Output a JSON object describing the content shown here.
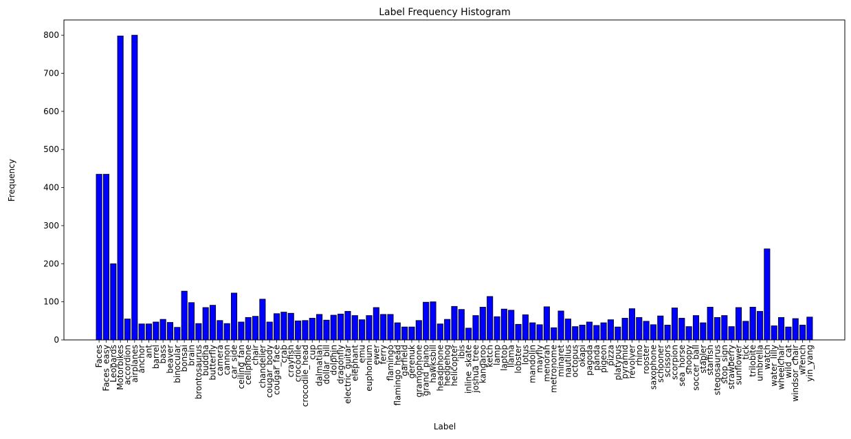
{
  "chart_data": {
    "type": "bar",
    "title": "Label Frequency Histogram",
    "xlabel": "Label",
    "ylabel": "Frequency",
    "ylim": [
      0,
      840
    ],
    "yticks": [
      0,
      100,
      200,
      300,
      400,
      500,
      600,
      700,
      800
    ],
    "bar_color": "#0000ff",
    "edge_color": "#000000",
    "grid": false,
    "categories": [
      "Faces",
      "Faces_easy",
      "Leopards",
      "Motorbikes",
      "accordion",
      "airplanes",
      "anchor",
      "ant",
      "barrel",
      "bass",
      "beaver",
      "binocular",
      "bonsai",
      "brain",
      "brontosaurus",
      "buddha",
      "butterfly",
      "camera",
      "cannon",
      "car_side",
      "ceiling_fan",
      "cellphone",
      "chair",
      "chandelier",
      "cougar_body",
      "cougar_face",
      "crab",
      "crayfish",
      "crocodile",
      "crocodile_head",
      "cup",
      "dalmatian",
      "dollar_bill",
      "dolphin",
      "dragonfly",
      "electric_guitar",
      "elephant",
      "emu",
      "euphonium",
      "ewer",
      "ferry",
      "flamingo",
      "flamingo_head",
      "garfield",
      "gerenuk",
      "gramophone",
      "grand_piano",
      "hawksbill",
      "headphone",
      "hedgehog",
      "helicopter",
      "ibis",
      "inline_skate",
      "joshua_tree",
      "kangaroo",
      "ketch",
      "lamp",
      "laptop",
      "llama",
      "lobster",
      "lotus",
      "mandolin",
      "mayfly",
      "menorah",
      "metronome",
      "minaret",
      "nautilus",
      "octopus",
      "okapi",
      "pagoda",
      "panda",
      "pigeon",
      "pizza",
      "platypus",
      "pyramid",
      "revolver",
      "rhino",
      "rooster",
      "saxophone",
      "schooner",
      "scissors",
      "scorpion",
      "sea_horse",
      "snoopy",
      "soccer_ball",
      "stapler",
      "starfish",
      "stegosaurus",
      "stop_sign",
      "strawberry",
      "sunflower",
      "tick",
      "trilobite",
      "umbrella",
      "watch",
      "water_lilly",
      "wheelchair",
      "wild_cat",
      "windsor_chair",
      "wrench",
      "yin_yang"
    ],
    "values": [
      435,
      435,
      200,
      798,
      55,
      800,
      42,
      42,
      47,
      54,
      46,
      33,
      128,
      98,
      43,
      85,
      91,
      51,
      43,
      123,
      47,
      59,
      62,
      107,
      47,
      69,
      73,
      70,
      50,
      51,
      57,
      67,
      52,
      65,
      68,
      75,
      64,
      53,
      64,
      85,
      67,
      67,
      45,
      34,
      34,
      51,
      99,
      100,
      42,
      54,
      88,
      80,
      31,
      64,
      86,
      114,
      61,
      81,
      78,
      41,
      66,
      45,
      40,
      87,
      32,
      76,
      55,
      35,
      39,
      47,
      38,
      45,
      53,
      34,
      57,
      82,
      59,
      49,
      40,
      63,
      39,
      84,
      57,
      35,
      64,
      45,
      86,
      59,
      64,
      35,
      85,
      49,
      86,
      75,
      239,
      37,
      59,
      34,
      56,
      39,
      60
    ]
  }
}
